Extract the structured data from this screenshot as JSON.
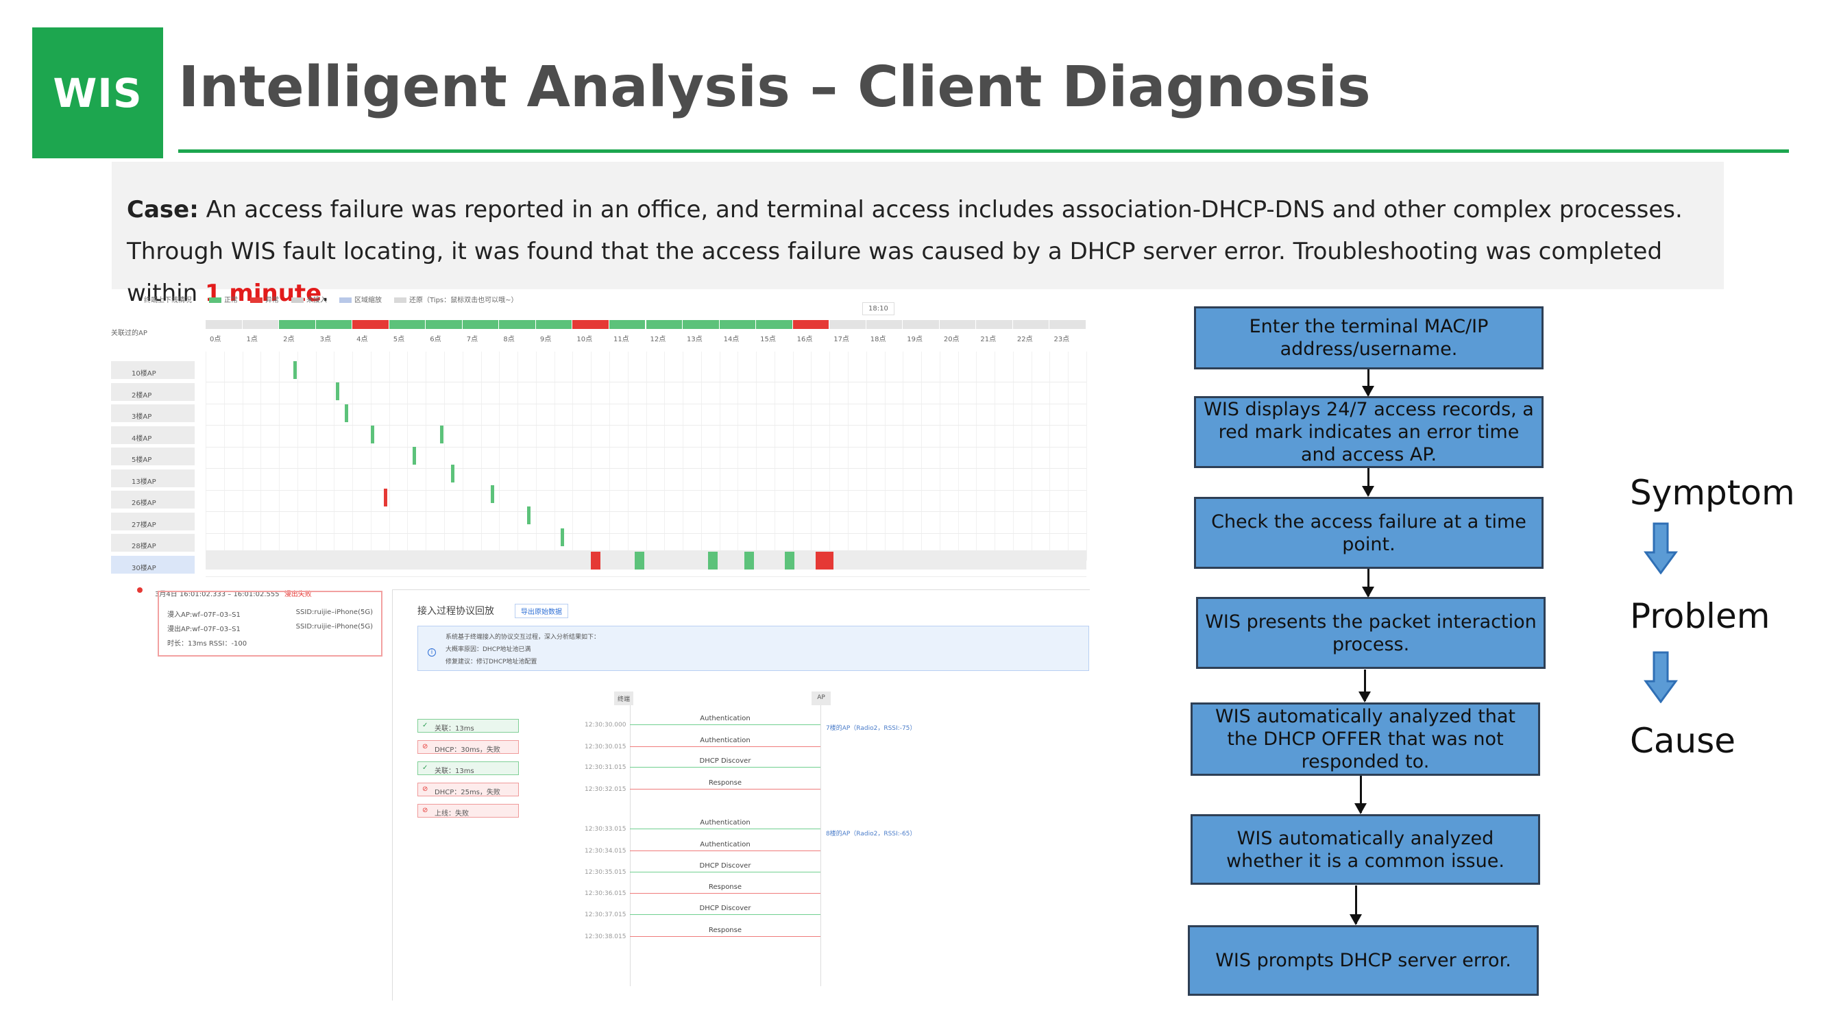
{
  "logo": {
    "text": "WIS"
  },
  "title": "Intelligent Analysis – Client Diagnosis",
  "case": {
    "label": "Case:",
    "text": " An access failure was reported in an office, and terminal access includes association-DHCP-DNS and other complex processes. Through WIS fault locating, it was found that the access failure was caused by a DHCP server error. Troubleshooting was completed within ",
    "highlight": "1 minute",
    "end": "."
  },
  "timeline": {
    "legend_title": "终端上下线情况",
    "legend": [
      {
        "label": "正常",
        "color": "#5cc27a"
      },
      {
        "label": "异常",
        "color": "#e53935"
      },
      {
        "label": "未接入",
        "color": "#cfcfcf"
      },
      {
        "label": "区域缩放",
        "color": "#b8c8e8"
      },
      {
        "label": "还原（Tips：鼠标双击也可以哦~）",
        "color": "#d9d9d9"
      }
    ],
    "time_label": "18:10",
    "row_header": "关联过的AP",
    "hours": [
      "0点",
      "1点",
      "2点",
      "3点",
      "4点",
      "5点",
      "6点",
      "7点",
      "8点",
      "9点",
      "10点",
      "11点",
      "12点",
      "13点",
      "14点",
      "15点",
      "16点",
      "17点",
      "18点",
      "19点",
      "20点",
      "21点",
      "22点",
      "23点"
    ],
    "hour_status": [
      "none",
      "none",
      "ok",
      "ok",
      "bad",
      "ok",
      "ok",
      "ok",
      "ok",
      "ok",
      "bad",
      "ok",
      "ok",
      "ok",
      "ok",
      "ok",
      "bad",
      "none",
      "none",
      "none",
      "none",
      "none",
      "none",
      "none"
    ],
    "aps": [
      "10楼AP",
      "2楼AP",
      "3楼AP",
      "4楼AP",
      "5楼AP",
      "13楼AP",
      "26楼AP",
      "27楼AP",
      "28楼AP",
      "30楼AP"
    ]
  },
  "error_card": {
    "time": "3月4日 16:01:02.333 – 16:01:02.555",
    "status": "漫出失败",
    "line1_left": "漫入AP:wf–07F–03–S1",
    "line1_right": "SSID:ruijie–iPhone(5G)",
    "line2_left": "漫出AP:wf–07F–03–S1",
    "line2_right": "SSID:ruijie–iPhone(5G)",
    "line3": "时长：13ms   RSSI：-100"
  },
  "replay": {
    "title": "接入过程协议回放",
    "export_button": "导出原始数据",
    "info_line1": "系统基于终端接入的协议交互过程，深入分析结果如下：",
    "info_line2": "大概率原因：DHCP地址池已满",
    "info_line3": "修复建议：修订DHCP地址池配置",
    "col_terminal": "终端",
    "col_ap": "AP",
    "steps": [
      {
        "label": "关联：13ms",
        "state": "ok"
      },
      {
        "label": "DHCP：30ms，失败",
        "state": "bad"
      },
      {
        "label": "关联：13ms",
        "state": "ok"
      },
      {
        "label": "DHCP：25ms，失败",
        "state": "bad"
      },
      {
        "label": "上线：失败",
        "state": "bad"
      }
    ],
    "timestamps": [
      "12:30:30.000",
      "12:30:30.015",
      "12:30:31.015",
      "12:30:32.015",
      "12:30:33.015",
      "12:30:34.015",
      "12:30:35.015",
      "12:30:36.015",
      "12:30:37.015",
      "12:30:38.015"
    ],
    "messages": [
      "Authentication",
      "Authentication",
      "DHCP Discover",
      "Response",
      "Authentication",
      "Authentication",
      "DHCP Discover",
      "Response",
      "DHCP Discover",
      "Response"
    ],
    "ap1": "7楼的AP（Radio2，RSSI:-75）",
    "ap2": "8楼的AP（Radio2，RSSI:-65）"
  },
  "flow": [
    "Enter the terminal MAC/IP address/username.",
    "WIS displays 24/7 access records, a red mark indicates an error time and access AP.",
    "Check the access failure at a time point.",
    "WIS presents the packet interaction process.",
    "WIS automatically analyzed that the DHCP OFFER that was not responded to.",
    "WIS automatically analyzed whether it is a common issue.",
    "WIS prompts DHCP server error."
  ],
  "side_labels": {
    "symptom": "Symptom",
    "problem": "Problem",
    "cause": "Cause"
  },
  "colors": {
    "brand_green": "#1da64f",
    "flow_box": "#5b9bd5",
    "highlight_red": "#e21b1b"
  }
}
